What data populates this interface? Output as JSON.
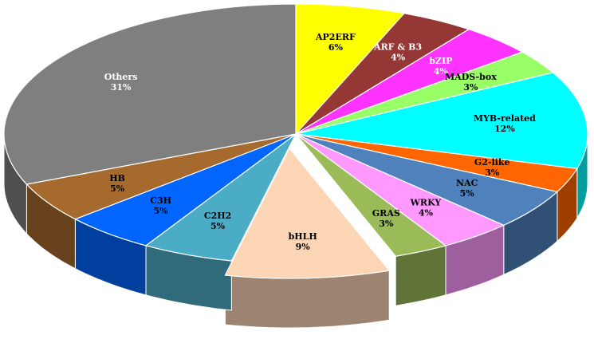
{
  "chart_data": {
    "type": "pie",
    "title": "",
    "style": "3d-exploded-slice",
    "start": "12 o'clock, clockwise",
    "exploded": "bHLH",
    "slices": [
      {
        "label": "AP2ERF",
        "value": 6,
        "display": "6%",
        "color": "#ffff00",
        "text": "#000000"
      },
      {
        "label": "ARF & B3",
        "value": 4,
        "display": "4%",
        "color": "#953735",
        "text": "#ffffff"
      },
      {
        "label": "bZIP",
        "value": 4,
        "display": "4%",
        "color": "#ff33ff",
        "text": "#ffffff"
      },
      {
        "label": "MADS-box",
        "value": 3,
        "display": "3%",
        "color": "#99ff66",
        "text": "#000000"
      },
      {
        "label": "MYB-related",
        "value": 12,
        "display": "12%",
        "color": "#00ffff",
        "text": "#000000"
      },
      {
        "label": "G2-like",
        "value": 3,
        "display": "3%",
        "color": "#ff6600",
        "text": "#000000"
      },
      {
        "label": "NAC",
        "value": 5,
        "display": "5%",
        "color": "#4f81bd",
        "text": "#000000"
      },
      {
        "label": "WRKY",
        "value": 4,
        "display": "4%",
        "color": "#ff99ff",
        "text": "#000000"
      },
      {
        "label": "GRAS",
        "value": 3,
        "display": "3%",
        "color": "#9bbb59",
        "text": "#000000"
      },
      {
        "label": "bHLH",
        "value": 9,
        "display": "9%",
        "color": "#fcd5b5",
        "text": "#000000"
      },
      {
        "label": "C2H2",
        "value": 5,
        "display": "5%",
        "color": "#4bacc6",
        "text": "#000000"
      },
      {
        "label": "C3H",
        "value": 5,
        "display": "5%",
        "color": "#0066ff",
        "text": "#000000"
      },
      {
        "label": "HB",
        "value": 5,
        "display": "5%",
        "color": "#a66a2e",
        "text": "#000000"
      },
      {
        "label": "Others",
        "value": 31,
        "display": "31%",
        "color": "#7f7f7f",
        "text": "#ffffff"
      }
    ]
  }
}
